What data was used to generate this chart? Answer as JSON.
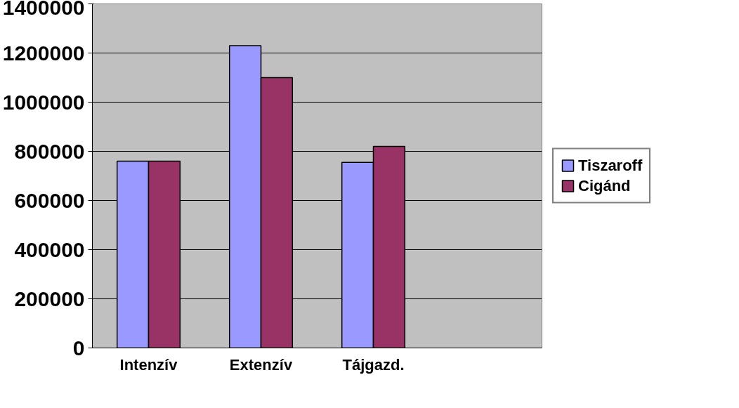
{
  "chart_data": {
    "type": "bar",
    "categories": [
      "Intenzív",
      "Extenzív",
      "Tájgazd.",
      null
    ],
    "series": [
      {
        "name": "Tiszaroff",
        "color": "#9999ff",
        "values": [
          760000,
          1230000,
          755000,
          null
        ]
      },
      {
        "name": "Cigánd",
        "color": "#993366",
        "values": [
          760000,
          1100000,
          820000,
          null
        ]
      }
    ],
    "ylim": [
      0,
      1400000
    ],
    "yticks": [
      0,
      200000,
      400000,
      600000,
      800000,
      1000000,
      1200000,
      1400000
    ],
    "grid": "y",
    "legend": "right"
  }
}
